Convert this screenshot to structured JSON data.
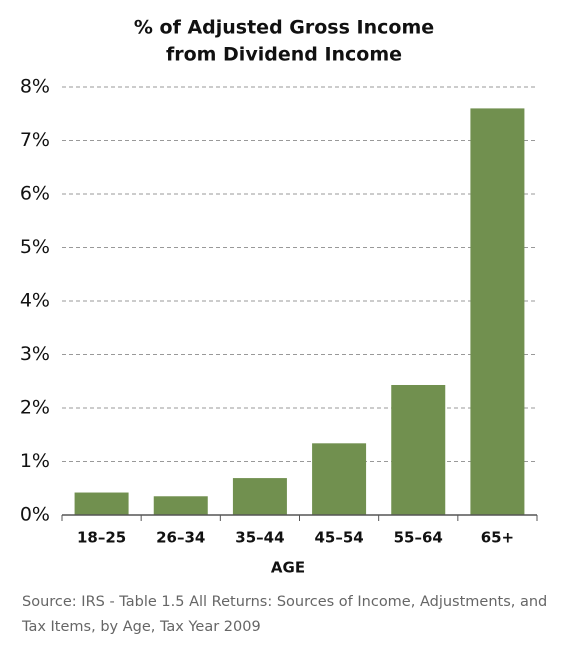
{
  "chart_data": {
    "type": "bar",
    "title": [
      "% of Adjusted Gross Income",
      "from Dividend Income"
    ],
    "categories": [
      "18–25",
      "26–34",
      "35–44",
      "45–54",
      "55–64",
      "65+"
    ],
    "values": [
      0.42,
      0.35,
      0.69,
      1.34,
      2.43,
      7.6
    ],
    "color": "#71904f",
    "x_label": "AGE",
    "ylim": [
      0,
      8
    ],
    "yticks": [
      {
        "value": 0,
        "label": "0%"
      },
      {
        "value": 1,
        "label": "1%"
      },
      {
        "value": 2,
        "label": "2%"
      },
      {
        "value": 3,
        "label": "3%"
      },
      {
        "value": 4,
        "label": "4%"
      },
      {
        "value": 5,
        "label": "5%"
      },
      {
        "value": 6,
        "label": "6%"
      },
      {
        "value": 7,
        "label": "7%"
      },
      {
        "value": 8,
        "label": "8%"
      }
    ],
    "grid": true,
    "note": "Source: IRS - Table 1.5 All Returns: Sources of Income, Adjustments, and Tax Items, by Age, Tax Year 2009"
  }
}
